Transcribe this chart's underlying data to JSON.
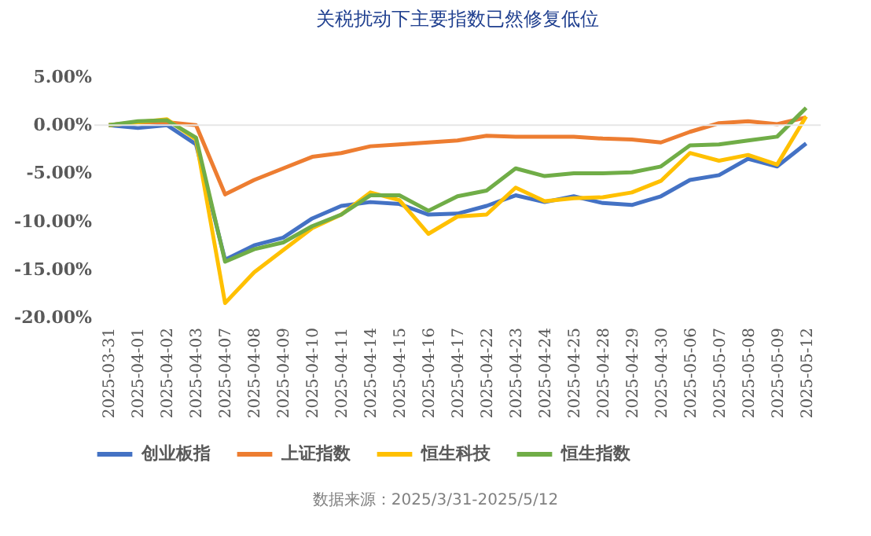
{
  "chart_data": {
    "type": "line",
    "title": "关税扰动下主要指数已然修复低位",
    "categories": [
      "2025-03-31",
      "2025-04-01",
      "2025-04-02",
      "2025-04-03",
      "2025-04-07",
      "2025-04-08",
      "2025-04-09",
      "2025-04-10",
      "2025-04-11",
      "2025-04-14",
      "2025-04-15",
      "2025-04-16",
      "2025-04-17",
      "2025-04-22",
      "2025-04-23",
      "2025-04-24",
      "2025-04-25",
      "2025-04-28",
      "2025-04-29",
      "2025-04-30",
      "2025-05-06",
      "2025-05-07",
      "2025-05-08",
      "2025-05-09",
      "2025-05-12"
    ],
    "series": [
      {
        "name": "创业板指",
        "color": "#4472c4",
        "values": [
          0,
          -0.3,
          0,
          -2,
          -14,
          -12.5,
          -11.7,
          -9.7,
          -8.4,
          -8,
          -8.2,
          -9.3,
          -9.2,
          -8.4,
          -7.3,
          -8,
          -7.4,
          -8.1,
          -8.3,
          -7.4,
          -5.7,
          -5.2,
          -3.5,
          -4.3,
          -1.9
        ]
      },
      {
        "name": "上证指数",
        "color": "#ed7d31",
        "values": [
          0,
          0.3,
          0.3,
          0,
          -7.2,
          -5.7,
          -4.5,
          -3.3,
          -2.9,
          -2.2,
          -2,
          -1.8,
          -1.6,
          -1.1,
          -1.2,
          -1.2,
          -1.2,
          -1.4,
          -1.5,
          -1.8,
          -0.7,
          0.2,
          0.4,
          0.1,
          0.8
        ]
      },
      {
        "name": "恒生科技",
        "color": "#ffc000",
        "values": [
          0,
          0.3,
          0.6,
          -1.5,
          -18.5,
          -15.3,
          -13,
          -10.7,
          -9.3,
          -7,
          -7.8,
          -11.3,
          -9.5,
          -9.3,
          -6.5,
          -7.9,
          -7.6,
          -7.5,
          -7,
          -5.8,
          -2.9,
          -3.7,
          -3.1,
          -4.1,
          0.9
        ]
      },
      {
        "name": "恒生指数",
        "color": "#70ad47",
        "values": [
          0,
          0.4,
          0.5,
          -1.3,
          -14.2,
          -12.9,
          -12.2,
          -10.5,
          -9.3,
          -7.3,
          -7.3,
          -8.9,
          -7.4,
          -6.8,
          -4.5,
          -5.3,
          -5,
          -5,
          -4.9,
          -4.3,
          -2.1,
          -2,
          -1.6,
          -1.2,
          1.8
        ]
      }
    ],
    "ylim": [
      -20,
      5
    ],
    "yticks": [
      {
        "value": -20,
        "label": "-20.00%"
      },
      {
        "value": -15,
        "label": "-15.00%"
      },
      {
        "value": -10,
        "label": "-10.00%"
      },
      {
        "value": -5,
        "label": "-5.00%"
      },
      {
        "value": 0,
        "label": "0.00%"
      },
      {
        "value": 5,
        "label": "5.00%"
      }
    ],
    "ref_lines": [
      {
        "axis": "y",
        "value": 0,
        "color": "#e6e6e6"
      }
    ],
    "legend": "bottom",
    "marker": "none",
    "line_style": "solid",
    "annotations": [
      "数据来源：2025/3/31-2025/5/12"
    ]
  }
}
